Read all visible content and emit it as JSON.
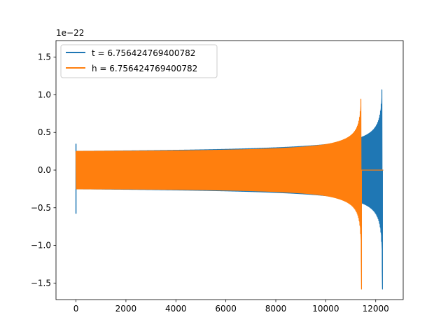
{
  "chart_data": {
    "type": "line",
    "title": "",
    "xlabel": "",
    "ylabel": "",
    "y_offset_label": "1e−22",
    "xlim": [
      -800,
      13100
    ],
    "ylim": [
      -1.72,
      1.72
    ],
    "x_ticks": [
      0,
      2000,
      4000,
      6000,
      8000,
      10000,
      12000
    ],
    "x_tick_labels": [
      "0",
      "2000",
      "4000",
      "6000",
      "8000",
      "10000",
      "12000"
    ],
    "y_ticks": [
      -1.5,
      -1.0,
      -0.5,
      0.0,
      0.5,
      1.0,
      1.5
    ],
    "y_tick_labels": [
      "−1.5",
      "−1.0",
      "−0.5",
      "0.0",
      "0.5",
      "1.0",
      "1.5"
    ],
    "grid": false,
    "legend_position": "top-left",
    "series": [
      {
        "name": "t = 6.756424769400782",
        "color": "#1f77b4",
        "x_range": [
          0,
          12300
        ],
        "merger_x": 12270,
        "start_spike": [
          -0.58,
          0.35
        ],
        "inspiral_amplitude_start": 0.25,
        "amplitude_at_10000": 0.34,
        "peak_amplitude": 1.58,
        "ringdown_end_x": 12300
      },
      {
        "name": "h = 6.756424769400782",
        "color": "#ff7f0e",
        "x_range": [
          0,
          12300
        ],
        "merger_x": 11430,
        "inspiral_amplitude_start": 0.25,
        "amplitude_at_10000": 0.34,
        "peak_amplitude": 1.58,
        "post_merger_value": 0.0
      }
    ]
  }
}
